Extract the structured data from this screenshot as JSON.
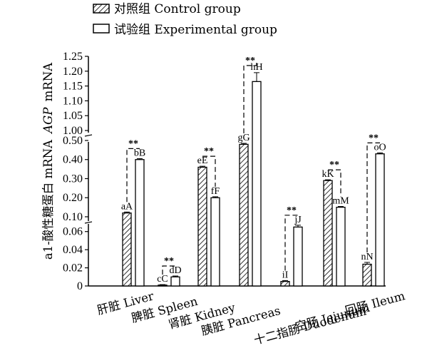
{
  "chart_data": {
    "type": "bar",
    "ylabel": "a1-酸性糖蛋白 mRNA AGP mRNA",
    "legend": {
      "placement": "top-left",
      "entries": [
        {
          "name": "对照组 Control group",
          "pattern": "hatched"
        },
        {
          "name": "试验组 Experimental group",
          "pattern": "open"
        }
      ]
    },
    "categories": [
      "肝脏 Liver",
      "脾脏 Spleen",
      "肾脏 Kidney",
      "胰脏 Pancreas",
      "十二指肠 Duodenum",
      "空肠 Jejunum",
      "回肠 Ileum"
    ],
    "series": [
      {
        "name": "对照组 Control group",
        "values": [
          0.12,
          0.001,
          0.36,
          0.48,
          0.005,
          0.29,
          0.024
        ],
        "errors": [
          0.005,
          0.0005,
          0.005,
          0.005,
          0.001,
          0.004,
          0.002
        ],
        "labels": [
          "aA",
          "cC",
          "eE",
          "gG",
          "iI",
          "kK",
          "nN"
        ]
      },
      {
        "name": "试验组 Experimental group",
        "values": [
          0.4,
          0.01,
          0.2,
          1.165,
          0.065,
          0.15,
          0.43
        ],
        "errors": [
          0.005,
          0.001,
          0.005,
          0.03,
          0.002,
          0.004,
          0.005
        ],
        "labels": [
          "bB",
          "dD",
          "fF",
          "hH",
          "jJ",
          "mM",
          "oO"
        ]
      }
    ],
    "significance": [
      "**",
      "**",
      "**",
      "**",
      "**",
      "**",
      "**"
    ],
    "yaxis_broken": true,
    "ylim_segments": [
      [
        0,
        0.07
      ],
      [
        0.07,
        0.5
      ],
      [
        1.0,
        1.25
      ]
    ],
    "ytick_labels": [
      "0",
      "0.02",
      "0.04",
      "0.06",
      "0.10",
      "0.20",
      "0.30",
      "0.40",
      "0.50",
      "1.00",
      "1.05",
      "1.10",
      "1.15",
      "1.20",
      "1.25"
    ],
    "ytick_values": [
      0,
      0.02,
      0.04,
      0.06,
      0.1,
      0.2,
      0.3,
      0.4,
      0.5,
      1.0,
      1.05,
      1.1,
      1.15,
      1.2,
      1.25
    ],
    "grid": false
  }
}
